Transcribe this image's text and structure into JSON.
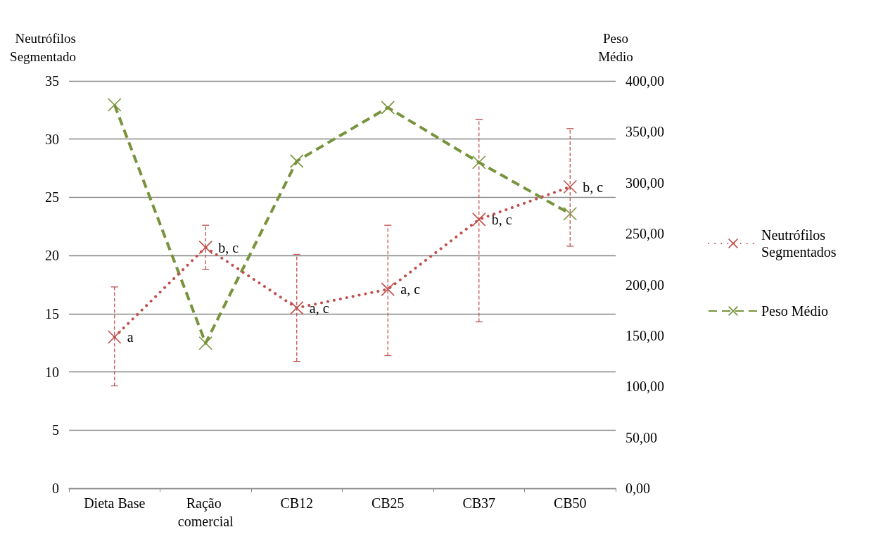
{
  "chart_data": {
    "type": "line",
    "ylabel": "Neutrófilos Segmentado",
    "y2label": "Peso Médio",
    "categories": [
      "Dieta Base",
      "Ração comercial",
      "CB12",
      "CB25",
      "CB37",
      "CB50"
    ],
    "series": [
      {
        "name": "Neutrófilos Segmentados",
        "color": "#c0504d",
        "values": [
          13.0,
          20.7,
          15.5,
          17.1,
          23.1,
          25.9
        ],
        "errors": [
          [
            8.8,
            17.3
          ],
          [
            18.8,
            22.6
          ],
          [
            10.9,
            20.1
          ],
          [
            11.4,
            22.6
          ],
          [
            14.3,
            31.7
          ],
          [
            20.8,
            30.9
          ]
        ],
        "marker": "cross",
        "line_style": "dotted"
      },
      {
        "name": "Peso Médio",
        "color": "#77933c",
        "axis": "y2",
        "values": [
          376.5,
          142.5,
          321.3,
          373.8,
          320.0,
          269.6
        ],
        "marker": "cross",
        "line_style": "dashed"
      }
    ],
    "ylim": [
      0,
      35
    ],
    "yticks": [
      0,
      5,
      10,
      15,
      20,
      25,
      30,
      35
    ],
    "y2lim": [
      0,
      400
    ],
    "y2ticks": [
      {
        "value": 0,
        "label": "0,00"
      },
      {
        "value": 50,
        "label": "50,00"
      },
      {
        "value": 100,
        "label": "100,00"
      },
      {
        "value": 150,
        "label": "150,00"
      },
      {
        "value": 200,
        "label": "200,00"
      },
      {
        "value": 250,
        "label": "250,00"
      },
      {
        "value": 300,
        "label": "300,00"
      },
      {
        "value": 350,
        "label": "350,00"
      },
      {
        "value": 400,
        "label": "400,00"
      }
    ],
    "annotations": [
      {
        "text": "a",
        "x": "Dieta Base",
        "y": 13.0
      },
      {
        "text": "b, c",
        "x": "Ração comercial",
        "y": 20.7
      },
      {
        "text": "a, c",
        "x": "CB12",
        "y": 15.5
      },
      {
        "text": "a, c",
        "x": "CB25",
        "y": 17.1
      },
      {
        "text": "b, c",
        "x": "CB37",
        "y": 23.1
      },
      {
        "text": "b, c",
        "x": "CB50",
        "y": 25.9
      }
    ],
    "grid": "y",
    "legend": "right"
  }
}
